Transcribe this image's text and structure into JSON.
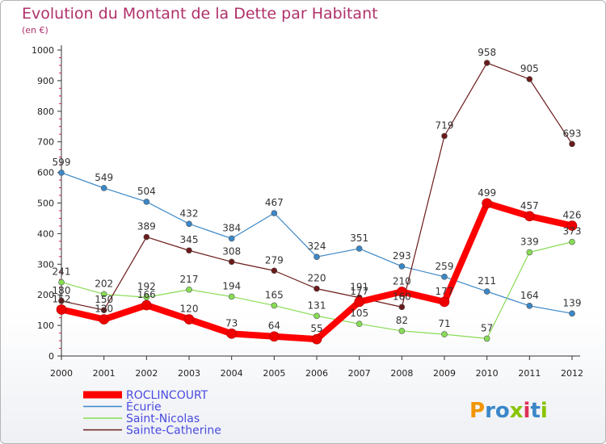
{
  "chart_data": {
    "type": "line",
    "title": "Evolution du Montant de la Dette par Habitant",
    "subtitle": "(en €)",
    "x": [
      "2000",
      "2001",
      "2002",
      "2003",
      "2004",
      "2005",
      "2006",
      "2007",
      "2008",
      "2009",
      "2010",
      "2011",
      "2012"
    ],
    "ylim": [
      0,
      1000
    ],
    "yticks": [
      0,
      100,
      200,
      300,
      400,
      500,
      600,
      700,
      800,
      900,
      1000
    ],
    "grid": false,
    "legend_position": "bottom-left",
    "series": [
      {
        "name": "ROCLINCOURT",
        "color": "#ff0000",
        "values": [
          152,
          120,
          166,
          120,
          73,
          64,
          55,
          177,
          210,
          177,
          499,
          457,
          426
        ]
      },
      {
        "name": "Écurie",
        "color": "#3a87c8",
        "values": [
          599,
          549,
          504,
          432,
          384,
          467,
          324,
          351,
          293,
          259,
          211,
          164,
          139
        ]
      },
      {
        "name": "Saint-Nicolas",
        "color": "#88dd55",
        "values": [
          241,
          202,
          192,
          217,
          194,
          165,
          131,
          105,
          82,
          71,
          57,
          339,
          373
        ]
      },
      {
        "name": "Sainte-Catherine",
        "color": "#6b1a1a",
        "values": [
          180,
          150,
          389,
          345,
          308,
          279,
          220,
          191,
          160,
          719,
          958,
          905,
          693
        ]
      }
    ]
  },
  "logo": {
    "text": "Proxiti"
  }
}
